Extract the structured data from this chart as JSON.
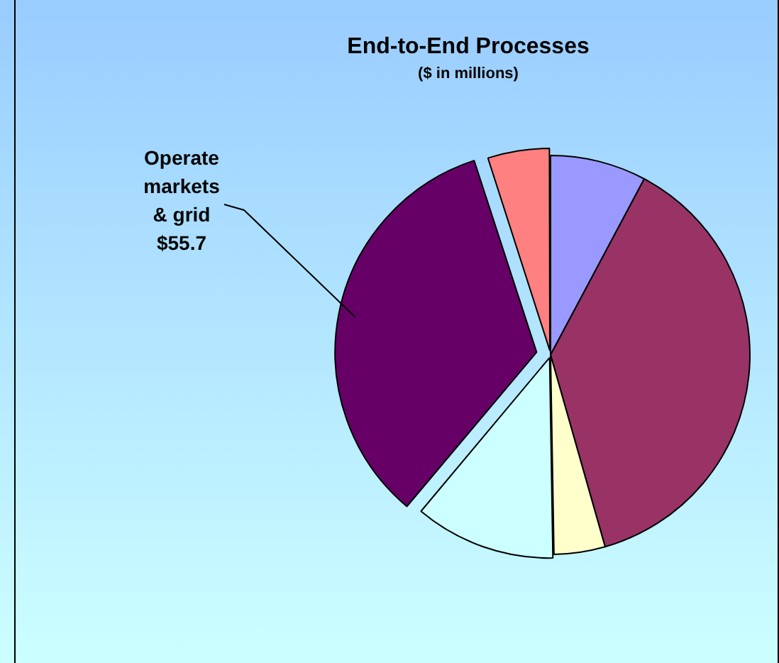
{
  "chart_data": {
    "type": "pie",
    "title": "End-to-End Processes",
    "subtitle": "($ in millions)",
    "categories": [
      null,
      null,
      null,
      null,
      "Operate markets & grid",
      null
    ],
    "values": [
      12.8,
      62.1,
      6.8,
      18.7,
      55.7,
      8.2
    ],
    "colors": [
      "#9999ff",
      "#993366",
      "#ffffcc",
      "#ccffff",
      "#660066",
      "#ff8080"
    ],
    "value_labels": [
      null,
      null,
      null,
      null,
      "$55.7",
      null
    ],
    "legend": false
  }
}
